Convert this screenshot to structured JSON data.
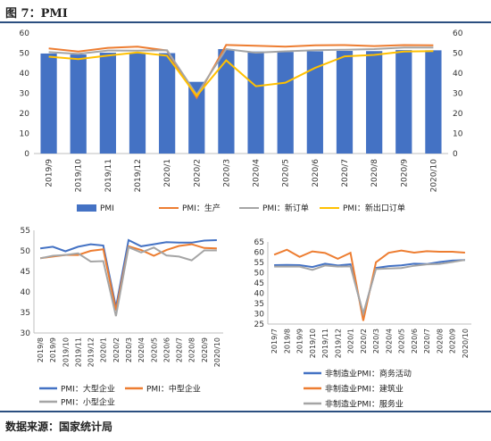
{
  "figure_title": "图 7：PMI",
  "source": "数据来源：国家统计局",
  "colors": {
    "blue": "#4472c4",
    "orange": "#ed7d31",
    "gray": "#a5a5a5",
    "yellow": "#ffc000",
    "rule": "#2b4f80"
  },
  "chart_data": [
    {
      "type": "bar",
      "categories": [
        "2019/9",
        "2019/10",
        "2019/11",
        "2019/12",
        "2020/1",
        "2020/2",
        "2020/3",
        "2020/4",
        "2020/5",
        "2020/6",
        "2020/7",
        "2020/8",
        "2020/9",
        "2020/10"
      ],
      "series": [
        {
          "name": "PMI",
          "kind": "bar",
          "color": "#4472c4",
          "values": [
            49.8,
            49.3,
            50.2,
            50.2,
            50.0,
            35.7,
            52.0,
            50.8,
            50.6,
            50.9,
            51.1,
            51.0,
            51.5,
            51.4
          ]
        },
        {
          "name": "PMI：生产",
          "kind": "line",
          "color": "#ed7d31",
          "values": [
            52.3,
            50.8,
            52.6,
            53.2,
            51.3,
            27.8,
            54.1,
            53.7,
            53.2,
            53.9,
            54.0,
            53.5,
            54.0,
            53.9
          ]
        },
        {
          "name": "PMI：新订单",
          "kind": "line",
          "color": "#a5a5a5",
          "values": [
            50.5,
            49.6,
            51.3,
            51.2,
            51.4,
            29.3,
            52.0,
            50.2,
            50.9,
            51.4,
            51.7,
            52.0,
            52.8,
            52.8
          ]
        },
        {
          "name": "PMI：新出口订单",
          "kind": "line",
          "color": "#ffc000",
          "values": [
            48.2,
            47.0,
            48.8,
            50.3,
            48.7,
            28.7,
            46.4,
            33.5,
            35.3,
            42.6,
            48.4,
            49.1,
            50.8,
            51.0
          ]
        }
      ],
      "ylim": [
        0,
        60
      ],
      "yticks": [
        0,
        10,
        20,
        30,
        40,
        50,
        60
      ],
      "ylim_right": [
        0,
        60
      ],
      "yticks_right": [
        0,
        10,
        20,
        30,
        40,
        50,
        60
      ],
      "grid": false,
      "legend": "bottom"
    },
    {
      "type": "line",
      "categories": [
        "2019/8",
        "2019/9",
        "2019/10",
        "2019/11",
        "2019/12",
        "2020/1",
        "2020/2",
        "2020/3",
        "2020/4",
        "2020/5",
        "2020/6",
        "2020/7",
        "2020/8",
        "2020/9",
        "2020/10"
      ],
      "series": [
        {
          "name": "PMI：大型企业",
          "color": "#4472c4",
          "values": [
            50.6,
            51.0,
            49.9,
            51.0,
            51.6,
            51.3,
            36.3,
            52.6,
            51.1,
            51.6,
            52.1,
            52.0,
            52.0,
            52.5,
            52.6
          ]
        },
        {
          "name": "PMI：中型企业",
          "color": "#ed7d31",
          "values": [
            48.2,
            48.6,
            49.0,
            49.0,
            50.0,
            50.4,
            35.5,
            51.1,
            50.2,
            48.8,
            50.2,
            51.2,
            51.6,
            50.7,
            50.6
          ]
        },
        {
          "name": "PMI：小型企业",
          "color": "#a5a5a5",
          "values": [
            48.2,
            48.8,
            49.0,
            49.4,
            47.4,
            47.5,
            34.1,
            50.9,
            49.6,
            50.8,
            48.9,
            48.6,
            47.7,
            50.1,
            50.1
          ]
        }
      ],
      "ylim": [
        30,
        55
      ],
      "yticks": [
        30,
        35,
        40,
        45,
        50,
        55
      ],
      "grid": false,
      "legend": "bottom"
    },
    {
      "type": "line",
      "categories": [
        "2019/7",
        "2019/8",
        "2019/9",
        "2019/10",
        "2019/11",
        "2019/12",
        "2020/1",
        "2020/2",
        "2020/3",
        "2020/4",
        "2020/5",
        "2020/6",
        "2020/7",
        "2020/8",
        "2020/9",
        "2020/10"
      ],
      "series": [
        {
          "name": "非制造业PMI：商务活动",
          "color": "#4472c4",
          "values": [
            53.7,
            53.8,
            53.7,
            52.8,
            54.4,
            53.5,
            54.1,
            29.6,
            52.3,
            53.2,
            53.6,
            54.4,
            54.2,
            55.2,
            55.9,
            56.2
          ]
        },
        {
          "name": "非制造业PMI：建筑业",
          "color": "#ed7d31",
          "values": [
            58.8,
            61.2,
            57.7,
            60.4,
            59.6,
            56.8,
            59.7,
            26.6,
            55.1,
            59.7,
            60.8,
            59.8,
            60.5,
            60.2,
            60.2,
            59.8
          ]
        },
        {
          "name": "非制造业PMI：服务业",
          "color": "#a5a5a5",
          "values": [
            53.0,
            53.0,
            53.0,
            51.4,
            53.5,
            53.0,
            53.1,
            30.1,
            51.8,
            52.1,
            52.3,
            53.4,
            54.1,
            54.3,
            55.2,
            56.2
          ]
        }
      ],
      "ylim": [
        25,
        65
      ],
      "yticks": [
        25,
        30,
        35,
        40,
        45,
        50,
        55,
        60,
        65
      ],
      "grid": false,
      "legend": "bottom"
    }
  ]
}
